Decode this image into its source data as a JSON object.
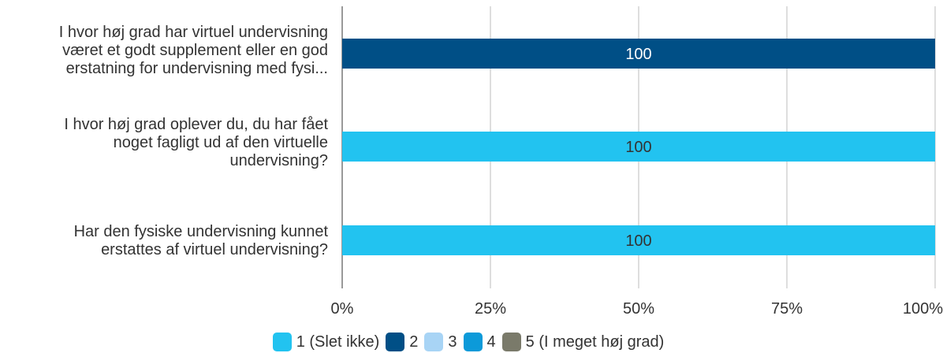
{
  "chart_data": {
    "type": "bar",
    "orientation": "horizontal",
    "stacked": "percent",
    "categories": [
      "I hvor høj grad har virtuel undervisning været et godt supplement eller en god erstatning for undervisning med fysi...",
      "I hvor høj grad oplever du, du har fået noget fagligt ud af den virtuelle undervisning?",
      "Har den fysiske undervisning kunnet erstattes af virtuel undervisning?"
    ],
    "category_lines": [
      [
        "I hvor høj grad har virtuel undervisning",
        "været et godt supplement eller en god",
        "erstatning for undervisning med fysi..."
      ],
      [
        "I hvor høj grad oplever du, du har fået",
        "noget fagligt ud af den virtuelle",
        "undervisning?"
      ],
      [
        "Har den fysiske undervisning kunnet",
        "erstattes af virtuel undervisning?"
      ]
    ],
    "series": [
      {
        "name": "1 (Slet ikke)",
        "color": "#22c3f0",
        "values": [
          0,
          100,
          100
        ]
      },
      {
        "name": "2",
        "color": "#004f86",
        "values": [
          100,
          0,
          0
        ]
      },
      {
        "name": "3",
        "color": "#a8d4f5",
        "values": [
          0,
          0,
          0
        ]
      },
      {
        "name": "4",
        "color": "#0c9ad9",
        "values": [
          0,
          0,
          0
        ]
      },
      {
        "name": "5 (I meget høj grad)",
        "color": "#7a7a6a",
        "values": [
          0,
          0,
          0
        ]
      }
    ],
    "data_labels": [
      "100",
      "100",
      "100"
    ],
    "x_ticks": [
      "0%",
      "25%",
      "50%",
      "75%",
      "100%"
    ],
    "xlim": [
      0,
      100
    ],
    "grid": true,
    "legend_position": "bottom"
  }
}
